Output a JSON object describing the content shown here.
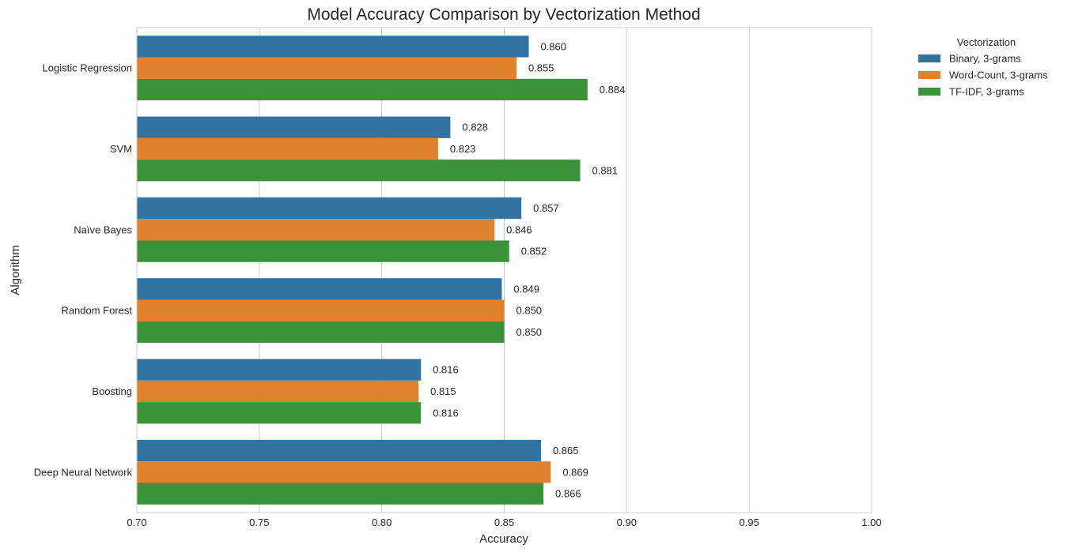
{
  "chart_data": {
    "type": "bar",
    "orientation": "horizontal",
    "title": "Model Accuracy Comparison by Vectorization Method",
    "xlabel": "Accuracy",
    "ylabel": "Algorithm",
    "xlim": [
      0.7,
      1.0
    ],
    "xticks": [
      "0.70",
      "0.75",
      "0.80",
      "0.85",
      "0.90",
      "0.95",
      "1.00"
    ],
    "grid": true,
    "legend": {
      "title": "Vectorization",
      "position": "outside-top-right"
    },
    "categories": [
      "Logistic Regression",
      "SVM",
      "Naïve Bayes",
      "Random Forest",
      "Boosting",
      "Deep Neural Network"
    ],
    "series": [
      {
        "name": "Binary, 3-grams",
        "color": "#3274a1",
        "values": [
          0.86,
          0.828,
          0.857,
          0.849,
          0.816,
          0.865
        ],
        "labels": [
          "0.860",
          "0.828",
          "0.857",
          "0.849",
          "0.816",
          "0.865"
        ]
      },
      {
        "name": "Word-Count, 3-grams",
        "color": "#e1812c",
        "values": [
          0.855,
          0.823,
          0.846,
          0.85,
          0.815,
          0.869
        ],
        "labels": [
          "0.855",
          "0.823",
          "0.846",
          "0.850",
          "0.815",
          "0.869"
        ]
      },
      {
        "name": "TF-IDF, 3-grams",
        "color": "#3a923a",
        "values": [
          0.884,
          0.881,
          0.852,
          0.85,
          0.816,
          0.866
        ],
        "labels": [
          "0.884",
          "0.881",
          "0.852",
          "0.850",
          "0.816",
          "0.866"
        ]
      }
    ]
  }
}
